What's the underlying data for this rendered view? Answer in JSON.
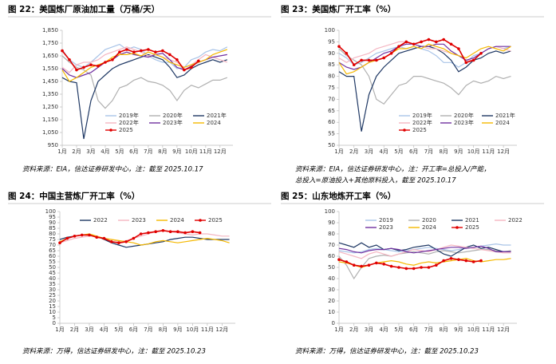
{
  "chart_data": [
    {
      "type": "line",
      "title": "图 22：美国炼厂原油加工量（万桶/天）",
      "source": [
        "资料来源：EIA，信达证券研发中心，注：截至 2025.10.17"
      ],
      "legend": "lower",
      "x": [
        1,
        1.5,
        2,
        2.5,
        3,
        3.5,
        4,
        4.5,
        5,
        5.5,
        6,
        6.5,
        7,
        7.5,
        8,
        8.5,
        9,
        9.5,
        10,
        10.5,
        11,
        11.5,
        12,
        12.5
      ],
      "xlim": [
        1,
        12.9
      ],
      "xticks": [
        {
          "value": 1,
          "label": "1月"
        },
        {
          "value": 2,
          "label": "2月"
        },
        {
          "value": 3,
          "label": "3月"
        },
        {
          "value": 4,
          "label": "4月"
        },
        {
          "value": 5,
          "label": "5月"
        },
        {
          "value": 6,
          "label": "6月"
        },
        {
          "value": 7,
          "label": "7月"
        },
        {
          "value": 8,
          "label": "8月"
        },
        {
          "value": 9,
          "label": "9月"
        },
        {
          "value": 10,
          "label": "10月"
        },
        {
          "value": 11,
          "label": "11月"
        },
        {
          "value": 12,
          "label": "12月"
        }
      ],
      "ylim": [
        950,
        1850
      ],
      "yticks": [
        950,
        {
          "value": 1050,
          "label": "1,050"
        },
        {
          "value": 1150,
          "label": "1,150"
        },
        {
          "value": 1250,
          "label": "1,250"
        },
        {
          "value": 1350,
          "label": "1,350"
        },
        {
          "value": 1450,
          "label": "1,450"
        },
        {
          "value": 1550,
          "label": "1,550"
        },
        {
          "value": 1650,
          "label": "1,650"
        },
        {
          "value": 1750,
          "label": "1,750"
        },
        {
          "value": 1850,
          "label": "1,850"
        }
      ],
      "series": [
        {
          "name": "2019年",
          "color": "#a9c4e8",
          "values": [
            1700,
            1620,
            1580,
            1560,
            1600,
            1650,
            1700,
            1720,
            1740,
            1700,
            1720,
            1700,
            1650,
            1620,
            1600,
            1600,
            1550,
            1560,
            1620,
            1640,
            1680,
            1700,
            1690,
            1720
          ]
        },
        {
          "name": "2020年",
          "color": "#b0b0b0",
          "values": [
            1650,
            1600,
            1560,
            1540,
            1500,
            1300,
            1240,
            1300,
            1400,
            1420,
            1460,
            1480,
            1450,
            1440,
            1420,
            1380,
            1300,
            1380,
            1420,
            1400,
            1430,
            1460,
            1460,
            1480
          ]
        },
        {
          "name": "2021年",
          "color": "#1f3864",
          "values": [
            1480,
            1450,
            1440,
            1000,
            1300,
            1450,
            1500,
            1550,
            1580,
            1600,
            1620,
            1640,
            1660,
            1640,
            1620,
            1560,
            1480,
            1500,
            1550,
            1580,
            1600,
            1620,
            1600,
            1620
          ]
        },
        {
          "name": "2022年",
          "color": "#f4b6c2",
          "values": [
            1560,
            1520,
            1580,
            1600,
            1600,
            1620,
            1660,
            1680,
            1700,
            1720,
            1700,
            1680,
            1650,
            1660,
            1640,
            1620,
            1600,
            1560,
            1580,
            1620,
            1660,
            1640,
            1620,
            1600
          ]
        },
        {
          "name": "2023年",
          "color": "#7030a0",
          "values": [
            1550,
            1500,
            1480,
            1500,
            1520,
            1560,
            1600,
            1620,
            1660,
            1680,
            1660,
            1650,
            1640,
            1660,
            1670,
            1620,
            1560,
            1540,
            1570,
            1600,
            1620,
            1640,
            1650,
            1660
          ]
        },
        {
          "name": "2024",
          "color": "#f5b800",
          "values": [
            1540,
            1450,
            1480,
            1520,
            1560,
            1580,
            1600,
            1640,
            1660,
            1660,
            1670,
            1650,
            1680,
            1660,
            1640,
            1600,
            1580,
            1560,
            1580,
            1600,
            1620,
            1660,
            1680,
            1700
          ]
        },
        {
          "name": "2025",
          "color": "#e00000",
          "marker": true,
          "values": [
            1690,
            1620,
            1540,
            1560,
            1580,
            1570,
            1600,
            1620,
            1680,
            1700,
            1680,
            1690,
            1700,
            1680,
            1690,
            1660,
            1620,
            1540,
            1560,
            1610,
            null,
            null,
            null,
            null
          ]
        }
      ]
    },
    {
      "type": "line",
      "title": "图 23：美国炼厂开工率（%）",
      "source": [
        "资料来源：EIA，信达证券研发中心，注：开工率=总投入/产能，",
        "总投入=原油投入+其他原料投入，截至 2025.10.17"
      ],
      "legend": "lower",
      "x": [
        1,
        1.5,
        2,
        2.5,
        3,
        3.5,
        4,
        4.5,
        5,
        5.5,
        6,
        6.5,
        7,
        7.5,
        8,
        8.5,
        9,
        9.5,
        10,
        10.5,
        11,
        11.5,
        12,
        12.5
      ],
      "xlim": [
        1,
        12.9
      ],
      "xticks": [
        {
          "value": 1,
          "label": "1月"
        },
        {
          "value": 2,
          "label": "2月"
        },
        {
          "value": 3,
          "label": "3月"
        },
        {
          "value": 4,
          "label": "4月"
        },
        {
          "value": 5,
          "label": "5月"
        },
        {
          "value": 6,
          "label": "6月"
        },
        {
          "value": 7,
          "label": "7月"
        },
        {
          "value": 8,
          "label": "8月"
        },
        {
          "value": 9,
          "label": "9月"
        },
        {
          "value": 10,
          "label": "10月"
        },
        {
          "value": 11,
          "label": "11月"
        },
        {
          "value": 12,
          "label": "12月"
        }
      ],
      "ylim": [
        50,
        100
      ],
      "yticks": [
        50,
        55,
        60,
        65,
        70,
        75,
        80,
        85,
        90,
        95,
        100
      ],
      "series": [
        {
          "name": "2019年",
          "color": "#a9c4e8",
          "values": [
            90,
            88,
            85,
            86,
            88,
            90,
            91,
            92,
            93,
            92,
            93,
            92,
            91,
            89,
            86,
            86,
            84,
            86,
            89,
            90,
            92,
            93,
            92,
            93
          ]
        },
        {
          "name": "2020年",
          "color": "#b0b0b0",
          "values": [
            92,
            89,
            87,
            85,
            80,
            70,
            68,
            72,
            76,
            77,
            80,
            80,
            79,
            78,
            77,
            75,
            72,
            76,
            78,
            77,
            78,
            80,
            79,
            80
          ]
        },
        {
          "name": "2021年",
          "color": "#1f3864",
          "values": [
            82,
            80,
            80,
            56,
            72,
            80,
            84,
            87,
            90,
            91,
            92,
            93,
            93,
            92,
            90,
            87,
            82,
            84,
            87,
            88,
            90,
            91,
            90,
            91
          ]
        },
        {
          "name": "2022年",
          "color": "#f4b6c2",
          "values": [
            88,
            86,
            88,
            89,
            90,
            92,
            93,
            94,
            95,
            95,
            94,
            93,
            92,
            92,
            91,
            90,
            89,
            87,
            87,
            90,
            92,
            93,
            92,
            91
          ]
        },
        {
          "name": "2023年",
          "color": "#7030a0",
          "values": [
            86,
            84,
            83,
            84,
            86,
            88,
            90,
            91,
            93,
            94,
            94,
            93,
            93,
            94,
            94,
            91,
            89,
            87,
            88,
            90,
            92,
            93,
            93,
            93
          ]
        },
        {
          "name": "2024",
          "color": "#f5b800",
          "values": [
            86,
            81,
            82,
            84,
            86,
            87,
            88,
            90,
            92,
            92,
            93,
            92,
            94,
            93,
            92,
            90,
            89,
            88,
            90,
            92,
            93,
            92,
            91,
            93
          ]
        },
        {
          "name": "2025",
          "color": "#e00000",
          "marker": true,
          "values": [
            93,
            90,
            85,
            87,
            87,
            87,
            88,
            90,
            93,
            95,
            94,
            95,
            96,
            95,
            96,
            94,
            92,
            86,
            87,
            90,
            null,
            null,
            null,
            null
          ]
        }
      ]
    },
    {
      "type": "line",
      "title": "图 24：中国主营炼厂开工率（%）",
      "source": [
        "资料来源：万得，信达证券研发中心，注：截至 2025.10.23"
      ],
      "legend": "upper",
      "x": [
        1,
        1.5,
        2,
        2.5,
        3,
        3.5,
        4,
        4.5,
        5,
        5.5,
        6,
        6.5,
        7,
        7.5,
        8,
        8.5,
        9,
        9.5,
        10,
        10.5,
        11,
        11.5,
        12,
        12.5
      ],
      "xlim": [
        1,
        12.9
      ],
      "xticks": [
        {
          "value": 1,
          "label": "1月"
        },
        {
          "value": 2,
          "label": "2月"
        },
        {
          "value": 3,
          "label": "3月"
        },
        {
          "value": 4,
          "label": "4月"
        },
        {
          "value": 5,
          "label": "5月"
        },
        {
          "value": 6,
          "label": "6月"
        },
        {
          "value": 7,
          "label": "7月"
        },
        {
          "value": 8,
          "label": "8月"
        },
        {
          "value": 9,
          "label": "9月"
        },
        {
          "value": 10,
          "label": "10月"
        },
        {
          "value": 11,
          "label": "11月"
        },
        {
          "value": 12,
          "label": "12月"
        }
      ],
      "ylim": [
        0,
        100
      ],
      "yticks": [
        0,
        5,
        10,
        15,
        20,
        25,
        30,
        35,
        40,
        45,
        50,
        55,
        60,
        65,
        70,
        75,
        80,
        85,
        90,
        95,
        100
      ],
      "series": [
        {
          "name": "2022",
          "color": "#1f3864",
          "values": [
            75,
            77,
            78,
            79,
            79,
            78,
            75,
            72,
            70,
            68,
            69,
            70,
            71,
            72,
            73,
            75,
            76,
            77,
            77,
            76,
            75,
            75,
            75,
            75
          ]
        },
        {
          "name": "2023",
          "color": "#f4b6c2",
          "values": [
            72,
            74,
            76,
            77,
            78,
            78,
            76,
            75,
            73,
            74,
            76,
            78,
            80,
            82,
            83,
            82,
            81,
            80,
            79,
            80,
            80,
            79,
            78,
            78
          ]
        },
        {
          "name": "2024",
          "color": "#f5b800",
          "values": [
            73,
            76,
            78,
            79,
            80,
            78,
            76,
            75,
            74,
            73,
            72,
            70,
            71,
            73,
            74,
            73,
            72,
            73,
            74,
            75,
            76,
            75,
            74,
            72
          ]
        },
        {
          "name": "2025",
          "color": "#e00000",
          "marker": true,
          "values": [
            72,
            76,
            78,
            79,
            79,
            77,
            76,
            73,
            72,
            73,
            76,
            80,
            81,
            82,
            83,
            82,
            82,
            81,
            82,
            81,
            null,
            null,
            null,
            null
          ]
        }
      ]
    },
    {
      "type": "line",
      "title": "图 25：山东地炼开工率（%）",
      "source": [
        "资料来源：万得，信达证券研发中心，注：截至 2025.10.23"
      ],
      "legend": "upper",
      "x": [
        1,
        1.5,
        2,
        2.5,
        3,
        3.5,
        4,
        4.5,
        5,
        5.5,
        6,
        6.5,
        7,
        7.5,
        8,
        8.5,
        9,
        9.5,
        10,
        10.5,
        11,
        11.5,
        12,
        12.5
      ],
      "xlim": [
        1,
        12.9
      ],
      "xticks": [
        {
          "value": 1,
          "label": "1月"
        },
        {
          "value": 2,
          "label": "2月"
        },
        {
          "value": 3,
          "label": "3月"
        },
        {
          "value": 4,
          "label": "4月"
        },
        {
          "value": 5,
          "label": "5月"
        },
        {
          "value": 6,
          "label": "6月"
        },
        {
          "value": 7,
          "label": "7月"
        },
        {
          "value": 8,
          "label": "8月"
        },
        {
          "value": 9,
          "label": "9月"
        },
        {
          "value": 10,
          "label": "10月"
        },
        {
          "value": 11,
          "label": "11月"
        },
        {
          "value": 12,
          "label": "12月"
        }
      ],
      "ylim": [
        0,
        100
      ],
      "yticks": [
        0,
        10,
        20,
        30,
        40,
        50,
        60,
        70,
        80,
        90,
        100
      ],
      "series": [
        {
          "name": "2019",
          "color": "#a9c4e8",
          "values": [
            65,
            64,
            63,
            64,
            66,
            67,
            66,
            65,
            64,
            65,
            66,
            67,
            68,
            67,
            66,
            65,
            66,
            67,
            68,
            69,
            70,
            71,
            70,
            70
          ]
        },
        {
          "name": "2020",
          "color": "#b0b0b0",
          "values": [
            60,
            52,
            40,
            50,
            58,
            60,
            61,
            60,
            62,
            63,
            64,
            63,
            62,
            64,
            65,
            64,
            63,
            64,
            65,
            66,
            66,
            65,
            64,
            65
          ]
        },
        {
          "name": "2021",
          "color": "#1f3864",
          "values": [
            72,
            70,
            68,
            72,
            68,
            70,
            66,
            67,
            65,
            66,
            68,
            69,
            70,
            66,
            62,
            60,
            64,
            68,
            70,
            67,
            68,
            66,
            64,
            64
          ]
        },
        {
          "name": "2022",
          "color": "#f4b6c2",
          "values": [
            64,
            62,
            60,
            58,
            62,
            64,
            62,
            60,
            62,
            64,
            66,
            65,
            64,
            66,
            68,
            70,
            69,
            68,
            67,
            66,
            65,
            64,
            63,
            63
          ]
        },
        {
          "name": "2023",
          "color": "#7030a0",
          "values": [
            67,
            66,
            64,
            63,
            65,
            66,
            66,
            67,
            66,
            64,
            63,
            64,
            65,
            66,
            67,
            68,
            68,
            67,
            68,
            69,
            67,
            64,
            64,
            64
          ]
        },
        {
          "name": "2024",
          "color": "#f5b800",
          "values": [
            55,
            54,
            52,
            50,
            52,
            54,
            55,
            56,
            55,
            53,
            52,
            54,
            55,
            54,
            55,
            56,
            57,
            58,
            56,
            55,
            56,
            57,
            57,
            58
          ]
        },
        {
          "name": "2025",
          "color": "#e00000",
          "marker": true,
          "values": [
            57,
            55,
            52,
            51,
            52,
            54,
            53,
            51,
            50,
            49,
            49,
            50,
            50,
            52,
            56,
            58,
            57,
            56,
            55,
            56,
            null,
            null,
            null,
            null
          ]
        }
      ]
    }
  ]
}
